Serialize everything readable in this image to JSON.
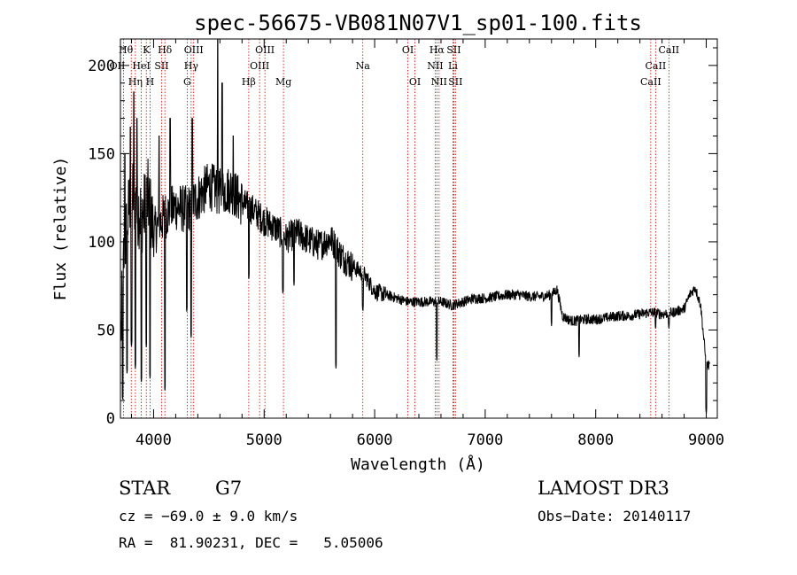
{
  "chart_data": {
    "type": "line",
    "title": "spec-56675-VB081N07V1_sp01-100.fits",
    "xlabel": "Wavelength (Å)",
    "ylabel": "Flux (relative)",
    "xlim": [
      3700,
      9100
    ],
    "ylim": [
      0,
      215
    ],
    "xticks": [
      4000,
      5000,
      6000,
      7000,
      8000,
      9000
    ],
    "yticks": [
      0,
      50,
      100,
      150,
      200
    ],
    "ytick_labels": [
      "0",
      "50",
      "100",
      "150",
      "200"
    ],
    "spectrum_envelope": {
      "x": [
        3700,
        3730,
        3760,
        3800,
        3850,
        3900,
        3950,
        4000,
        4100,
        4200,
        4300,
        4400,
        4500,
        4600,
        4700,
        4800,
        4900,
        5000,
        5100,
        5200,
        5300,
        5400,
        5500,
        5600,
        5700,
        5800,
        5900,
        6000,
        6100,
        6200,
        6300,
        6400,
        6500,
        6600,
        6700,
        6800,
        6900,
        7000,
        7100,
        7200,
        7300,
        7400,
        7500,
        7600,
        7650,
        7700,
        7750,
        7800,
        7900,
        8000,
        8100,
        8200,
        8300,
        8400,
        8500,
        8600,
        8700,
        8800,
        8850,
        8900,
        8950,
        9000
      ],
      "y": [
        40,
        90,
        110,
        130,
        120,
        115,
        125,
        105,
        115,
        120,
        118,
        125,
        132,
        128,
        130,
        122,
        118,
        112,
        108,
        102,
        105,
        101,
        98,
        102,
        92,
        86,
        82,
        72,
        70,
        68,
        66,
        66,
        66,
        66,
        64,
        66,
        68,
        68,
        69,
        70,
        70,
        69,
        69,
        70,
        73,
        58,
        56,
        55,
        56,
        56,
        57,
        58,
        58,
        59,
        60,
        59,
        60,
        62,
        70,
        74,
        64,
        30
      ]
    },
    "absorption_dips": [
      {
        "x": 3720,
        "y": 10
      },
      {
        "x": 3760,
        "y": 25
      },
      {
        "x": 3800,
        "y": 40
      },
      {
        "x": 3835,
        "y": 28
      },
      {
        "x": 3889,
        "y": 20
      },
      {
        "x": 3934,
        "y": 40
      },
      {
        "x": 3968,
        "y": 22
      },
      {
        "x": 4102,
        "y": 15
      },
      {
        "x": 4300,
        "y": 60
      },
      {
        "x": 4340,
        "y": 45
      },
      {
        "x": 4861,
        "y": 78
      },
      {
        "x": 5170,
        "y": 70
      },
      {
        "x": 5270,
        "y": 75
      },
      {
        "x": 5650,
        "y": 28
      },
      {
        "x": 5893,
        "y": 60
      },
      {
        "x": 6563,
        "y": 32
      },
      {
        "x": 7600,
        "y": 52
      },
      {
        "x": 7850,
        "y": 34
      },
      {
        "x": 8542,
        "y": 50
      },
      {
        "x": 8662,
        "y": 50
      },
      {
        "x": 9000,
        "y": 2
      }
    ],
    "emission_spikes": [
      {
        "x": 3740,
        "y": 150
      },
      {
        "x": 3790,
        "y": 165
      },
      {
        "x": 3820,
        "y": 185
      },
      {
        "x": 3850,
        "y": 170
      },
      {
        "x": 4050,
        "y": 160
      },
      {
        "x": 4150,
        "y": 170
      },
      {
        "x": 4350,
        "y": 170
      },
      {
        "x": 4580,
        "y": 215
      },
      {
        "x": 4620,
        "y": 190
      },
      {
        "x": 4720,
        "y": 160
      }
    ],
    "lines": [
      {
        "label": "Hθ",
        "x": 3798,
        "row": 0,
        "align": "end"
      },
      {
        "label": "K",
        "x": 3934,
        "row": 0,
        "align": "middle"
      },
      {
        "label": "Hδ",
        "x": 4102,
        "row": 0,
        "align": "middle"
      },
      {
        "label": "OIII",
        "x": 4363,
        "row": 0,
        "align": "middle"
      },
      {
        "label": "OIII",
        "x": 5007,
        "row": 0,
        "align": "middle"
      },
      {
        "label": "OI",
        "x": 6300,
        "row": 0,
        "align": "middle"
      },
      {
        "label": "Hα",
        "x": 6563,
        "row": 0,
        "align": "middle"
      },
      {
        "label": "SII",
        "x": 6716,
        "row": 0,
        "align": "middle"
      },
      {
        "label": "CaII",
        "x": 8662,
        "row": 0,
        "align": "middle"
      },
      {
        "label": "OII",
        "x": 3727,
        "row": 1,
        "align": "end"
      },
      {
        "label": "HeI",
        "x": 3889,
        "row": 1,
        "align": "middle"
      },
      {
        "label": "SII",
        "x": 4072,
        "row": 1,
        "align": "middle"
      },
      {
        "label": "Hγ",
        "x": 4340,
        "row": 1,
        "align": "middle"
      },
      {
        "label": "OIII",
        "x": 4959,
        "row": 1,
        "align": "middle"
      },
      {
        "label": "Na",
        "x": 5893,
        "row": 1,
        "align": "middle"
      },
      {
        "label": "NII",
        "x": 6548,
        "row": 1,
        "align": "middle"
      },
      {
        "label": "Li",
        "x": 6708,
        "row": 1,
        "align": "middle"
      },
      {
        "label": "CaII",
        "x": 8542,
        "row": 1,
        "align": "middle"
      },
      {
        "label": "Hη",
        "x": 3835,
        "row": 2,
        "align": "middle"
      },
      {
        "label": "H",
        "x": 3968,
        "row": 2,
        "align": "middle"
      },
      {
        "label": "G",
        "x": 4304,
        "row": 2,
        "align": "middle"
      },
      {
        "label": "Hβ",
        "x": 4861,
        "row": 2,
        "align": "middle"
      },
      {
        "label": "Mg",
        "x": 5175,
        "row": 2,
        "align": "middle"
      },
      {
        "label": "OI",
        "x": 6364,
        "row": 2,
        "align": "middle"
      },
      {
        "label": "NII",
        "x": 6583,
        "row": 2,
        "align": "middle"
      },
      {
        "label": "SII",
        "x": 6731,
        "row": 2,
        "align": "middle"
      },
      {
        "label": "CaII",
        "x": 8498,
        "row": 2,
        "align": "middle"
      }
    ],
    "line_marker_color": "#cc0000"
  },
  "info": {
    "object_class": "STAR",
    "subclass": "G7",
    "survey": "LAMOST DR3",
    "cz": "cz = −69.0 ± 9.0 km/s",
    "obs_date": "Obs−Date: 20140117",
    "coords": "RA =  81.90231, DEC =   5.05006"
  }
}
